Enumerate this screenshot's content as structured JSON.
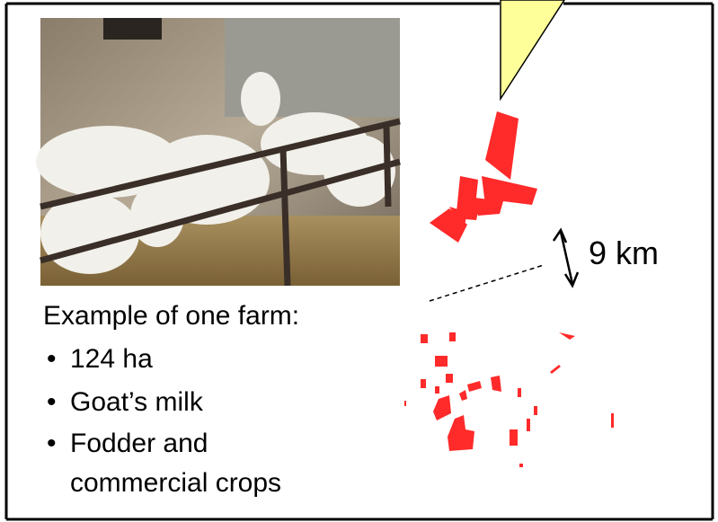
{
  "slide": {
    "distance_label": "9 km",
    "heading": "Example of one farm:",
    "bullets": [
      "124 ha",
      "Goat’s milk",
      "Fodder and commercial crops"
    ]
  }
}
